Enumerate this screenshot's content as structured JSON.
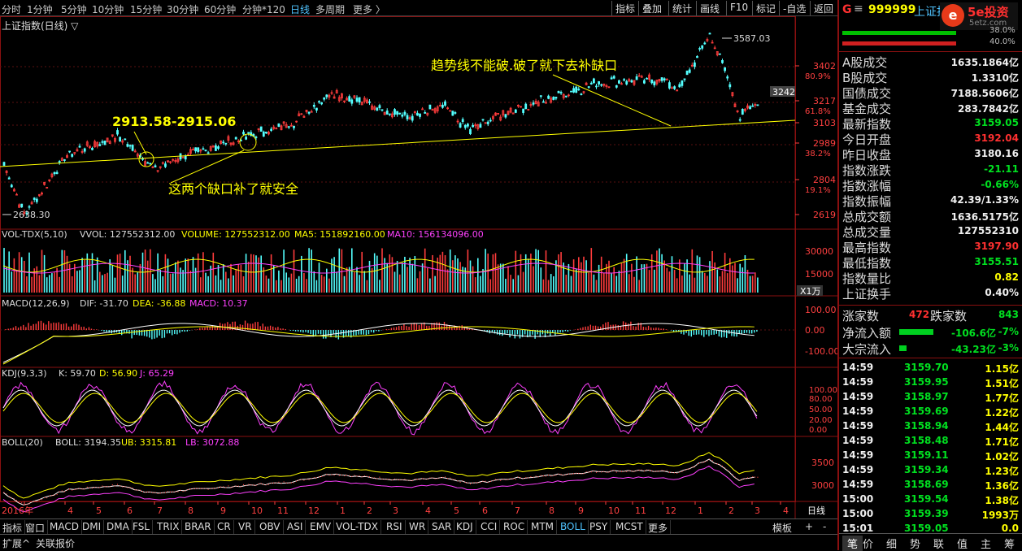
{
  "timeframes": [
    "分时",
    "1分钟",
    "5分钟",
    "10分钟",
    "15分钟",
    "30分钟",
    "60分钟",
    "分钟*120",
    "日线",
    "多周期",
    "更多 〉"
  ],
  "active_timeframe": "日线",
  "toolbar": [
    "指标",
    "叠加",
    "统计",
    "画线",
    "F10",
    "标记",
    "-自选",
    "返回"
  ],
  "main_title": "上证指数(日线) ▽",
  "high_label": "3587.03",
  "low_label": "2638.30",
  "price_axis": [
    {
      "v": "3402",
      "p": "80.9%"
    },
    {
      "v": "3217",
      "p": "61.8%"
    },
    {
      "v": "3103",
      "p": ""
    },
    {
      "v": "2989",
      "p": "38.2%"
    },
    {
      "v": "2804",
      "p": "19.1%"
    },
    {
      "v": "2619",
      "p": ""
    }
  ],
  "current_price_tag": "3242",
  "annotations": {
    "gap_range": "2913.58-2915.06",
    "gap_note": "这两个缺口补了就安全",
    "trend_note": "趋势线不能破.破了就下去补缺口"
  },
  "vol": {
    "header": "VOL-TDX(5,10)",
    "vvol": "VVOL: 127552312.00",
    "volume": "VOLUME: 127552312.00",
    "ma5": "MA5: 151892160.00",
    "ma10": "MA10: 156134096.00",
    "axis": [
      "30000",
      "15000"
    ],
    "unit": "X1万"
  },
  "macd": {
    "header": "MACD(12,26,9)",
    "dif": "DIF: -31.70",
    "dea": "DEA: -36.88",
    "macd": "MACD: 10.37",
    "axis": [
      "100.00",
      "0.00",
      "-100.00"
    ]
  },
  "kdj": {
    "header": "KDJ(9,3,3)",
    "k": "K: 59.70",
    "d": "D: 56.90",
    "j": "J: 65.29",
    "axis": [
      "100.00",
      "80.00",
      "50.00",
      "20.00",
      "0.00"
    ]
  },
  "boll": {
    "header": "BOLL(20)",
    "boll": "BOLL: 3194.35",
    "ub": "UB: 3315.81",
    "lb": "LB: 3072.88",
    "axis": [
      "3500",
      "3000"
    ]
  },
  "months": [
    "2016年",
    "4",
    "5",
    "6",
    "7",
    "8",
    "9",
    "10",
    "11",
    "12",
    "1",
    "2",
    "3",
    "4",
    "5",
    "6",
    "7",
    "8",
    "9",
    "10",
    "11",
    "12",
    "1",
    "2",
    "3",
    "4"
  ],
  "period_label": "日线",
  "indicator_tabs": [
    "指标",
    "窗口",
    "MACD",
    "DMI",
    "DMA",
    "FSL",
    "TRIX",
    "BRAR",
    "CR",
    "VR",
    "OBV",
    "ASI",
    "EMV",
    "VOL-TDX",
    "RSI",
    "WR",
    "SAR",
    "KDJ",
    "CCI",
    "ROC",
    "MTM",
    "BOLL",
    "PSY",
    "MCST",
    "更多"
  ],
  "active_indicator": "BOLL",
  "status_items": [
    "扩展^",
    "关联报价"
  ],
  "template_label": "模板",
  "quote": {
    "code": "999999",
    "name": "上证指数",
    "logo": "5e投资",
    "logo_sub": "5etz.com",
    "bar_pct_top": "38.0%",
    "bar_pct_bottom": "40.0%",
    "rows": [
      {
        "k": "A股成交",
        "v": "1635.1864亿",
        "c": "white"
      },
      {
        "k": "B股成交",
        "v": "1.3310亿",
        "c": "white"
      },
      {
        "k": "国债成交",
        "v": "7188.5606亿",
        "c": "white"
      },
      {
        "k": "基金成交",
        "v": "283.7842亿",
        "c": "white"
      },
      {
        "k": "最新指数",
        "v": "3159.05",
        "c": "green"
      },
      {
        "k": "今日开盘",
        "v": "3192.04",
        "c": "red"
      },
      {
        "k": "昨日收盘",
        "v": "3180.16",
        "c": "white"
      },
      {
        "k": "指数涨跌",
        "v": "-21.11",
        "c": "green"
      },
      {
        "k": "指数涨幅",
        "v": "-0.66%",
        "c": "green"
      },
      {
        "k": "指数振幅",
        "v": "42.39/1.33%",
        "c": "white"
      },
      {
        "k": "总成交额",
        "v": "1636.5175亿",
        "c": "white"
      },
      {
        "k": "总成交量",
        "v": "127552310",
        "c": "white"
      },
      {
        "k": "最高指数",
        "v": "3197.90",
        "c": "red"
      },
      {
        "k": "最低指数",
        "v": "3155.51",
        "c": "green"
      },
      {
        "k": "指数量比",
        "v": "0.82",
        "c": "yellow"
      },
      {
        "k": "上证换手",
        "v": "0.40%",
        "c": "white"
      }
    ],
    "up_label": "涨家数",
    "up_count": "472",
    "down_label": "跌家数",
    "down_count": "843",
    "flow": [
      {
        "k": "净流入额",
        "v": "-106.6亿",
        "p": "-7%",
        "bar": 0.7
      },
      {
        "k": "大宗流入",
        "v": "-43.23亿",
        "p": "-3%",
        "bar": 0.15
      }
    ],
    "ticks": [
      {
        "t": "14:59",
        "p": "3159.70",
        "v": "1.15亿"
      },
      {
        "t": "14:59",
        "p": "3159.95",
        "v": "1.51亿"
      },
      {
        "t": "14:59",
        "p": "3158.97",
        "v": "1.77亿"
      },
      {
        "t": "14:59",
        "p": "3159.69",
        "v": "1.22亿"
      },
      {
        "t": "14:59",
        "p": "3158.94",
        "v": "1.44亿"
      },
      {
        "t": "14:59",
        "p": "3158.48",
        "v": "1.71亿"
      },
      {
        "t": "14:59",
        "p": "3159.11",
        "v": "1.02亿"
      },
      {
        "t": "14:59",
        "p": "3159.34",
        "v": "1.23亿"
      },
      {
        "t": "14:59",
        "p": "3158.69",
        "v": "1.36亿"
      },
      {
        "t": "15:00",
        "p": "3159.54",
        "v": "1.38亿"
      },
      {
        "t": "15:00",
        "p": "3159.39",
        "v": "1993万"
      },
      {
        "t": "15:01",
        "p": "3159.05",
        "v": "0.0"
      }
    ],
    "tabs": [
      "笔",
      "价",
      "细",
      "势",
      "联",
      "值",
      "主",
      "筹"
    ]
  }
}
